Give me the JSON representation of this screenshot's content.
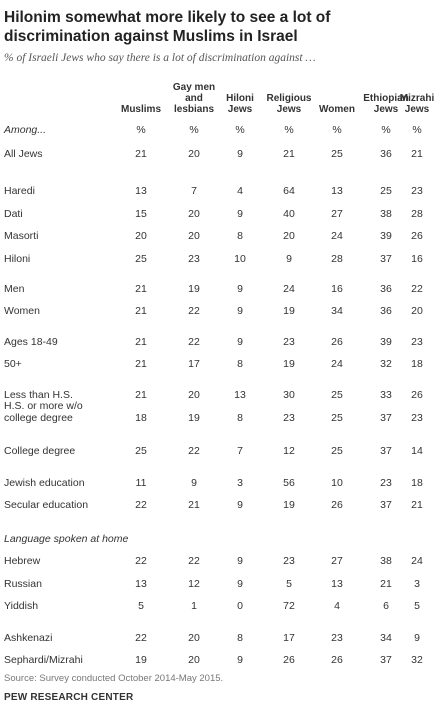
{
  "title": "Hilonim somewhat more likely to see a lot of discrimination against Muslims in Israel",
  "subtitle": "% of Israeli Jews who say there is a lot of discrimination against …",
  "source": "Source: Survey conducted October 2014-May 2015.",
  "organization": "PEW RESEARCH CENTER",
  "chart_data": {
    "type": "table",
    "columns": [
      "Muslims",
      "Gay men and lesbians",
      "Hiloni Jews",
      "Religious Jews",
      "Women",
      "Ethiopian Jews",
      "Mizrahi Jews"
    ],
    "header_lines": [
      [
        "Muslims"
      ],
      [
        "Gay men",
        "and",
        "lesbians"
      ],
      [
        "Hiloni",
        "Jews"
      ],
      [
        "Religious",
        "Jews"
      ],
      [
        "Women"
      ],
      [
        "Ethiopian",
        "Jews"
      ],
      [
        "Mizrahi",
        "Jews"
      ]
    ],
    "rows": [
      {
        "label": "Among...",
        "values": [
          "%",
          "%",
          "%",
          "%",
          "%",
          "%",
          "%"
        ]
      },
      {
        "label": "All Jews",
        "values": [
          21,
          20,
          9,
          21,
          25,
          36,
          21
        ]
      },
      {
        "label": "Haredi",
        "values": [
          13,
          7,
          4,
          64,
          13,
          25,
          23
        ]
      },
      {
        "label": "Dati",
        "values": [
          15,
          20,
          9,
          40,
          27,
          38,
          28
        ]
      },
      {
        "label": "Masorti",
        "values": [
          20,
          20,
          8,
          20,
          24,
          39,
          26
        ]
      },
      {
        "label": "Hiloni",
        "values": [
          25,
          23,
          10,
          9,
          28,
          37,
          16
        ]
      },
      {
        "label": "Men",
        "values": [
          21,
          19,
          9,
          24,
          16,
          36,
          22
        ]
      },
      {
        "label": "Women",
        "values": [
          21,
          22,
          9,
          19,
          34,
          36,
          20
        ]
      },
      {
        "label": "Ages 18-49",
        "values": [
          21,
          22,
          9,
          23,
          26,
          39,
          23
        ]
      },
      {
        "label": "50+",
        "values": [
          21,
          17,
          8,
          19,
          24,
          32,
          18
        ]
      },
      {
        "label": "Less than H.S.",
        "values": [
          21,
          20,
          13,
          30,
          25,
          33,
          26
        ]
      },
      {
        "label": "H.S. or more w/o college degree",
        "label_lines": [
          "H.S. or more w/o",
          "college degree"
        ],
        "values": [
          18,
          19,
          8,
          23,
          25,
          37,
          23
        ]
      },
      {
        "label": "College degree",
        "values": [
          25,
          22,
          7,
          12,
          25,
          37,
          14
        ]
      },
      {
        "label": "Jewish education",
        "values": [
          11,
          9,
          3,
          56,
          10,
          23,
          18
        ]
      },
      {
        "label": "Secular education",
        "values": [
          22,
          21,
          9,
          19,
          26,
          37,
          21
        ]
      },
      {
        "label": "Language spoken at home",
        "section": true,
        "values": []
      },
      {
        "label": "Hebrew",
        "values": [
          22,
          22,
          9,
          23,
          27,
          38,
          24
        ]
      },
      {
        "label": "Russian",
        "values": [
          13,
          12,
          9,
          5,
          13,
          21,
          3
        ]
      },
      {
        "label": "Yiddish",
        "values": [
          5,
          1,
          0,
          72,
          4,
          6,
          5
        ]
      },
      {
        "label": "Ashkenazi",
        "values": [
          22,
          20,
          8,
          17,
          23,
          34,
          9
        ]
      },
      {
        "label": "Sephardi/Mizrahi",
        "values": [
          19,
          20,
          9,
          26,
          26,
          37,
          32
        ]
      }
    ]
  }
}
